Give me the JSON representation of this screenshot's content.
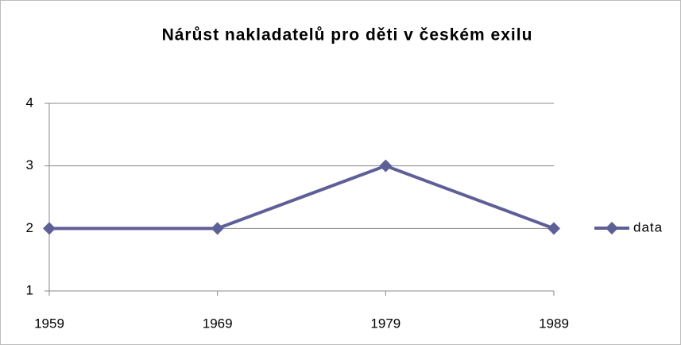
{
  "chart_data": {
    "type": "line",
    "title": "Nárůst nakladatelů pro děti v českém exilu",
    "x": [
      1959,
      1969,
      1979,
      1989
    ],
    "series": [
      {
        "name": "data",
        "color": "#5f5f98",
        "values": [
          2,
          2,
          3,
          2
        ]
      }
    ],
    "xlim": [
      1959,
      1989
    ],
    "xticks": [
      1959,
      1969,
      1979,
      1989
    ],
    "ylim": [
      1,
      4
    ],
    "yticks": [
      1,
      2,
      3,
      4
    ],
    "grid": true,
    "legend": "right"
  }
}
